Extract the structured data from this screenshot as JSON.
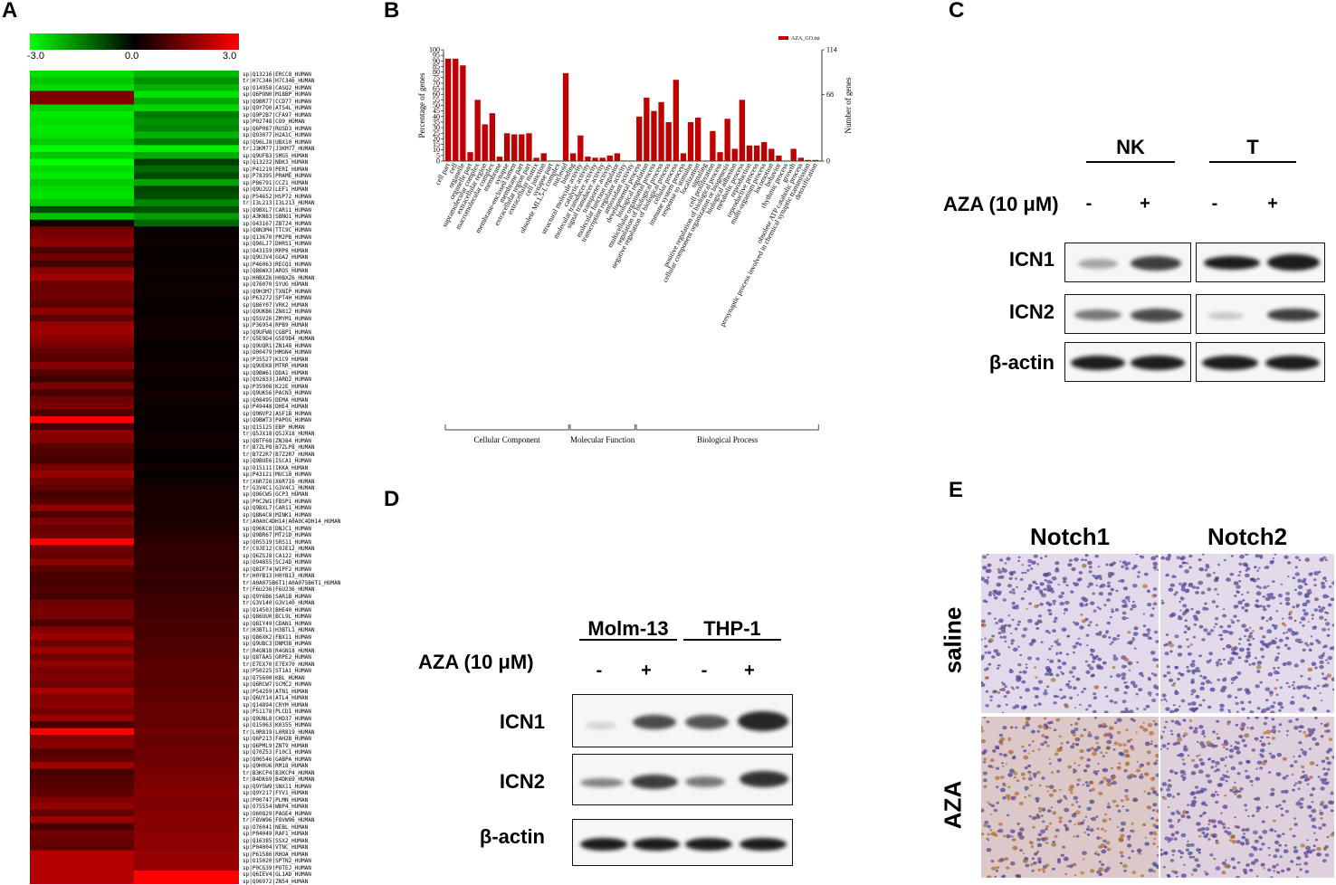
{
  "panels": {
    "a": "A",
    "b": "B",
    "c": "C",
    "d": "D",
    "e": "E"
  },
  "heatmap": {
    "scale_min_label": "-3.0",
    "scale_mid_label": "0.0",
    "scale_max_label": "3.0",
    "colors": {
      "low": "#00ff00",
      "mid": "#000000",
      "high": "#ff0000"
    },
    "genes": [
      "sp|Q13216|ERCC8_HUMAN",
      "tr|H7C346|H7C346_HUMAN",
      "sp|O14958|CASQ2_HUMAN",
      "sp|Q6PON0|M18BP_HUMAN",
      "sp|Q9BR77|CCD77_HUMAN",
      "sp|Q9Y7Q0|ATS4L_HUMAN",
      "sp|Q9P2B7|CFA97_HUMAN",
      "sp|P02748|CO9_HUMAN",
      "sp|Q6P087|RUSD3_HUMAN",
      "sp|Q93077|H2A1C_HUMAN",
      "sp|Q96LJ8|UBX10_HUMAN",
      "tr|J3KM77|J3KM77_HUMAN",
      "sp|Q9UFB3|SMG5_HUMAN",
      "sp|Q13232|NDK3_HUMAN",
      "sp|P41219|PERI_HUMAN",
      "sp|P78395|PRAME_HUMAN",
      "sp|P86791|CCZ1_HUMAN",
      "sp|Q9UJU2|LEF1_HUMAN",
      "sp|P54652|HSP72_HUMAN",
      "tr|I3L213|I3L213_HUMAN",
      "sp|Q9BXL7|CAR11_HUMAN",
      "sp|A3KN83|SBNO1_HUMAN",
      "sp|O43167|ZBT24_HUMAN",
      "sp|Q8N3M4|TTC9C_HUMAN",
      "sp|Q13670|PM2PB_HUMAN",
      "sp|Q96LJ7|DHRS1_HUMAN",
      "sp|O43159|RRP8_HUMAN",
      "sp|Q9UJV4|GGA2_HUMAN",
      "sp|P46063|RECQ1_HUMAN",
      "sp|Q86WX3|AROS_HUMAN",
      "sp|H0BXZ6|H0BXZ6_HUMAN",
      "sp|O76070|SYUG_HUMAN",
      "sp|Q9H3M7|TXNIP_HUMAN",
      "sp|P63272|SPT4H_HUMAN",
      "sp|Q86Y07|VRK2_HUMAN",
      "sp|Q9UKB6|ZN812_HUMAN",
      "sp|Q5SV26|ZMYM1_HUMAN",
      "sp|P36954|RPB9_HUMAN",
      "sp|Q9UFW8|CGBP1_HUMAN",
      "tr|G5E9D4|G5E9D4_HUMAN",
      "sp|Q9UQR1|ZN148_HUMAN",
      "sp|O00479|HMGN4_HUMAN",
      "sp|P35527|K1C9_HUMAN",
      "sp|Q9UEK8|MTRR_HUMAN",
      "sp|Q9BW61|DDA1_HUMAN",
      "sp|Q92833|JARD2_HUMAN",
      "sp|P35908|K22E_HUMAN",
      "sp|Q9UKS6|PACN3_HUMAN",
      "sp|Q08495|DEMA_HUMAN",
      "sp|P49448|DHE4_HUMAN",
      "sp|Q9NVP2|ASF1B_HUMAN",
      "sp|Q9BWT3|PAPOG_HUMAN",
      "sp|Q15125|EBP_HUMAN",
      "tr|Q5JX18|Q5JX18_HUMAN",
      "sp|Q8TF68|ZN384_HUMAN",
      "tr|B7ZLP8|B7ZLP8_HUMAN",
      "tr|B7Z2R7|B7Z2R7_HUMAN",
      "sp|Q9BUE6|ISCA1_HUMAN",
      "sp|O15111|IKKA_HUMAN",
      "sp|P43121|MUC18_HUMAN",
      "tr|X6R7I6|X6R7I6_HUMAN",
      "tr|G3V4C1|G3V4C1_HUMAN",
      "sp|Q96CW5|GCP3_HUMAN",
      "sp|P0C2W1|FBSP1_HUMAN",
      "sp|Q9BXL7|CAR11_HUMAN",
      "sp|Q8N4C8|MINK1_HUMAN",
      "tr|A0A0C4DH14|A0A0C4DH14_HUMAN",
      "sp|Q96KC8|DNJC1_HUMAN",
      "sp|Q9BR67|MT21D_HUMAN",
      "sp|Q05519|SRS11_HUMAN",
      "tr|C9JE12|C9JE12_HUMAN",
      "sp|Q6ZSJ8|CA122_HUMAN",
      "sp|O94855|SC24D_HUMAN",
      "sp|Q8IF74|WIPF2_HUMAN",
      "tr|H0YB13|H0YB13_HUMAN",
      "tr|A0A075B6T1|A0A075B6T1_HUMAN",
      "tr|F6U236|F6U236_HUMAN",
      "sp|Q9Y6B6|SAR1B_HUMAN",
      "tr|G3V140|G3V140_HUMAN",
      "sp|O14503|BHE40_HUMAN",
      "sp|Q86UU0|BCL9L_HUMAN",
      "sp|Q8IY49|CDAN1_HUMAN",
      "tr|H3BTL1|H3BTL1_HUMAN",
      "sp|Q86XK2|FBX11_HUMAN",
      "sp|Q9UBC3|DNM3B_HUMAN",
      "tr|R4GN18|R4GN18_HUMAN",
      "sp|Q8TAA5|GRPE2_HUMAN",
      "tr|E7EX70|E7EX70_HUMAN",
      "sp|P50225|ST1A1_HUMAN",
      "sp|O75600|KBL_HUMAN",
      "sp|Q6RCW7|SCMC2_HUMAN",
      "sp|P54259|ATN1_HUMAN",
      "sp|Q6UY14|ATL4_HUMAN",
      "sp|Q14894|CRYM_HUMAN",
      "sp|P51178|PLCD1_HUMAN",
      "sp|Q9UNL8|CHD37_HUMAN",
      "sp|O15063|K0355_HUMAN",
      "tr|L0R819|L0R819_HUMAN",
      "sp|Q6P213|FAH2B_HUMAN",
      "sp|Q6PML9|ZNT9_HUMAN",
      "sp|Q70Z53|F10C1_HUMAN",
      "sp|Q06546|GABPA_HUMAN",
      "sp|Q9H0U6|RM18_HUMAN",
      "tr|B3KCP4|B3KCP4_HUMAN",
      "tr|B4DK69|B4DK69_HUMAN",
      "sp|Q9Y5W9|SNX11_HUMAN",
      "sp|Q9Y217|FYV1_HUMAN",
      "sp|P00747|PLMN_HUMAN",
      "sp|O75554|WBP4_HUMAN",
      "sp|O60829|PAGE4_HUMAN",
      "tr|F8VW96|F8VW96_HUMAN",
      "sp|O76041|NEBL_HUMAN",
      "sp|P04049|RAF1_HUMAN",
      "sp|Q16385|SSX2_HUMAN",
      "sp|P04004|VTNC_HUMAN",
      "sp|P61586|RHOA_HUMAN",
      "sp|O15020|SPTN2_HUMAN",
      "sp|P0CG39|POTEJ_HUMAN",
      "sp|Q6IEV4|GL1AD_HUMAN",
      "sp|Q96972|ZN54_HUMAN"
    ]
  },
  "go_chart": {
    "chart_data": {
      "type": "bar",
      "title": "",
      "legend": "AZA_GO.txt",
      "ylabel_left": "Percentage of genes",
      "ylabel_right": "Number of genes",
      "yticks_left": [
        "100",
        "95",
        "90",
        "85",
        "80",
        "75",
        "70",
        "65",
        "60",
        "55",
        "50",
        "45",
        "40",
        "35",
        "30",
        "25",
        "20",
        "15",
        "10",
        "5",
        "0"
      ],
      "yticks_right": [
        "114",
        "68",
        "0"
      ],
      "ylim": [
        0,
        100
      ],
      "categories": [
        "cell part",
        "cell",
        "organelle",
        "organelle part",
        "supramolecular complex",
        "extracellular region",
        "macromolecular complex",
        "membrane",
        "synapse",
        "membrane-enclosed lumen",
        "membrane part",
        "extracellular region part",
        "extracellular matrix",
        "cell junction",
        "synapse part",
        "obsolete MLL5-L complex",
        "nucleoid",
        "binding",
        "structural molecule activity",
        "catalytic activity",
        "molecular transducer activity",
        "signal transducer activity",
        "transporter activity",
        "molecular function regulator",
        "transcription regulator activity",
        "antioxidant activity",
        "developmental process",
        "biological regulation",
        "multicellular organismal process",
        "regulation of biological process",
        "negative regulation of biological process",
        "cellular process",
        "immune system process",
        "response to stimulus",
        "localization",
        "signaling",
        "cell proliferation",
        "positive regulation of biological process",
        "cellular component organization or biogenesis",
        "biological adhesion",
        "metabolic process",
        "reproduction",
        "reproductive process",
        "multi-organism process",
        "locomotion",
        "behavior",
        "rhythmic process",
        "growth",
        "obsolete ATP catabolic process",
        "presynaptic process involved in chemical synaptic transmission",
        "detoxification"
      ],
      "values": [
        92,
        92,
        86,
        8,
        55,
        33,
        43,
        4,
        25,
        24,
        24,
        25,
        3,
        7,
        0.5,
        0.5,
        79,
        7,
        23,
        4,
        3,
        3,
        5,
        7,
        0.5,
        0.5,
        40,
        57,
        45,
        53,
        35,
        73,
        7,
        35,
        39,
        0.5,
        27,
        8,
        38,
        11,
        55,
        14,
        14,
        17,
        11,
        5,
        0.5,
        11,
        3,
        1,
        1
      ],
      "group_labels": [
        "Cellular Component",
        "Molecular Function",
        "Biological Process"
      ]
    }
  },
  "blot_c": {
    "groups": [
      "NK",
      "T"
    ],
    "treatment": "AZA (10 μM)",
    "signs": [
      "-",
      "+",
      "-",
      "+"
    ],
    "rows": [
      "ICN1",
      "ICN2",
      "β-actin"
    ]
  },
  "blot_d": {
    "groups": [
      "Molm-13",
      "THP-1"
    ],
    "treatment": "AZA (10 μM)",
    "signs": [
      "-",
      "+",
      "-",
      "+"
    ],
    "rows": [
      "ICN1",
      "ICN2",
      "β-actin"
    ]
  },
  "ihc": {
    "columns": [
      "Notch1",
      "Notch2"
    ],
    "rows": [
      "saline",
      "AZA"
    ]
  }
}
